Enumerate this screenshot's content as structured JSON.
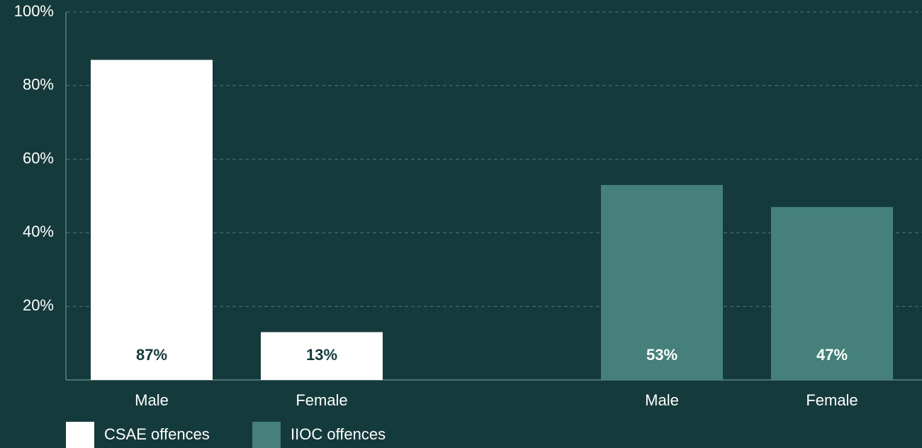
{
  "chart_data": {
    "type": "bar",
    "categories": [
      "Male",
      "Female",
      null,
      "Male",
      "Female"
    ],
    "series": [
      {
        "name": "CSAE offences",
        "color": "#ffffff",
        "values": [
          87,
          13,
          null,
          null,
          null
        ],
        "value_labels": [
          "87%",
          "13%",
          null,
          null,
          null
        ]
      },
      {
        "name": "IIOC offences",
        "color": "#45807b",
        "values": [
          null,
          null,
          null,
          53,
          47
        ],
        "value_labels": [
          null,
          null,
          null,
          "53%",
          "47%"
        ]
      }
    ],
    "ylim": [
      0,
      100
    ],
    "yticks": [
      {
        "value": 20,
        "label": "20%"
      },
      {
        "value": 40,
        "label": "40%"
      },
      {
        "value": 60,
        "label": "60%"
      },
      {
        "value": 80,
        "label": "80%"
      },
      {
        "value": 100,
        "label": "100%"
      }
    ],
    "grid": true,
    "legend": "bottom-left"
  }
}
